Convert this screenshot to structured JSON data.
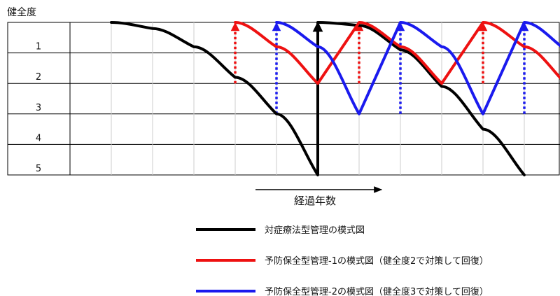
{
  "chart_data": {
    "type": "line",
    "ylabel": "健全度",
    "yticks": [
      "1",
      "2",
      "3",
      "4",
      "5"
    ],
    "xlabel": "経過年数",
    "grid": true,
    "colors": {
      "black": "#000000",
      "red": "#ee1111",
      "blue": "#1a1aee"
    },
    "series": [
      {
        "name": "対症療法型管理の模式図",
        "color": "#000000",
        "style": "solid",
        "points": [
          [
            1,
            0.0
          ],
          [
            2,
            0.2
          ],
          [
            3,
            0.8
          ],
          [
            4,
            1.8
          ],
          [
            5,
            3.0
          ],
          [
            6,
            5.0
          ],
          [
            6,
            0.0
          ],
          [
            7,
            0.1
          ],
          [
            8,
            0.9
          ],
          [
            9,
            2.1
          ],
          [
            10,
            3.5
          ],
          [
            11,
            5.0
          ]
        ]
      },
      {
        "name": "予防保全型管理-1の模式図（健全度2で対策して回復）",
        "color": "#ee1111",
        "style": "solid",
        "points": [
          [
            4,
            0.0
          ],
          [
            5,
            0.8
          ],
          [
            6,
            2.0
          ],
          [
            7,
            0.0
          ],
          [
            8,
            0.8
          ],
          [
            9,
            2.0
          ],
          [
            10,
            0.0
          ],
          [
            11,
            0.8
          ],
          [
            12,
            2.0
          ]
        ]
      },
      {
        "name": "予防保全型管理-2の模式図（健全度3で対策して回復）",
        "color": "#1a1aee",
        "style": "solid",
        "points": [
          [
            5,
            0.0
          ],
          [
            6,
            0.8
          ],
          [
            7,
            3.0
          ],
          [
            8,
            0.0
          ],
          [
            9,
            0.8
          ],
          [
            10,
            3.0
          ],
          [
            11,
            0.0
          ],
          [
            12,
            0.9
          ]
        ]
      }
    ],
    "recovery_arrows": [
      {
        "color": "#ee1111",
        "style": "dotted",
        "x": 4,
        "from": 2.0,
        "to": 0.0
      },
      {
        "color": "#1a1aee",
        "style": "dotted",
        "x": 5,
        "from": 3.0,
        "to": 0.0
      },
      {
        "color": "#000000",
        "style": "solid",
        "x": 6,
        "from": 5.0,
        "to": 0.0
      },
      {
        "color": "#ee1111",
        "style": "dotted",
        "x": 7,
        "from": 2.0,
        "to": 0.0
      },
      {
        "color": "#1a1aee",
        "style": "dotted",
        "x": 8,
        "from": 3.0,
        "to": 0.0
      },
      {
        "color": "#ee1111",
        "style": "dotted",
        "x": 10,
        "from": 2.0,
        "to": 0.0
      },
      {
        "color": "#1a1aee",
        "style": "dotted",
        "x": 11,
        "from": 3.0,
        "to": 0.0
      }
    ],
    "legend": [
      {
        "label": "対症療法型管理の模式図",
        "color": "#000000"
      },
      {
        "label": "予防保全型管理-1の模式図（健全度2で対策して回復）",
        "color": "#ee1111"
      },
      {
        "label": "予防保全型管理-2の模式図（健全度3で対策して回復）",
        "color": "#1a1aee"
      }
    ]
  }
}
